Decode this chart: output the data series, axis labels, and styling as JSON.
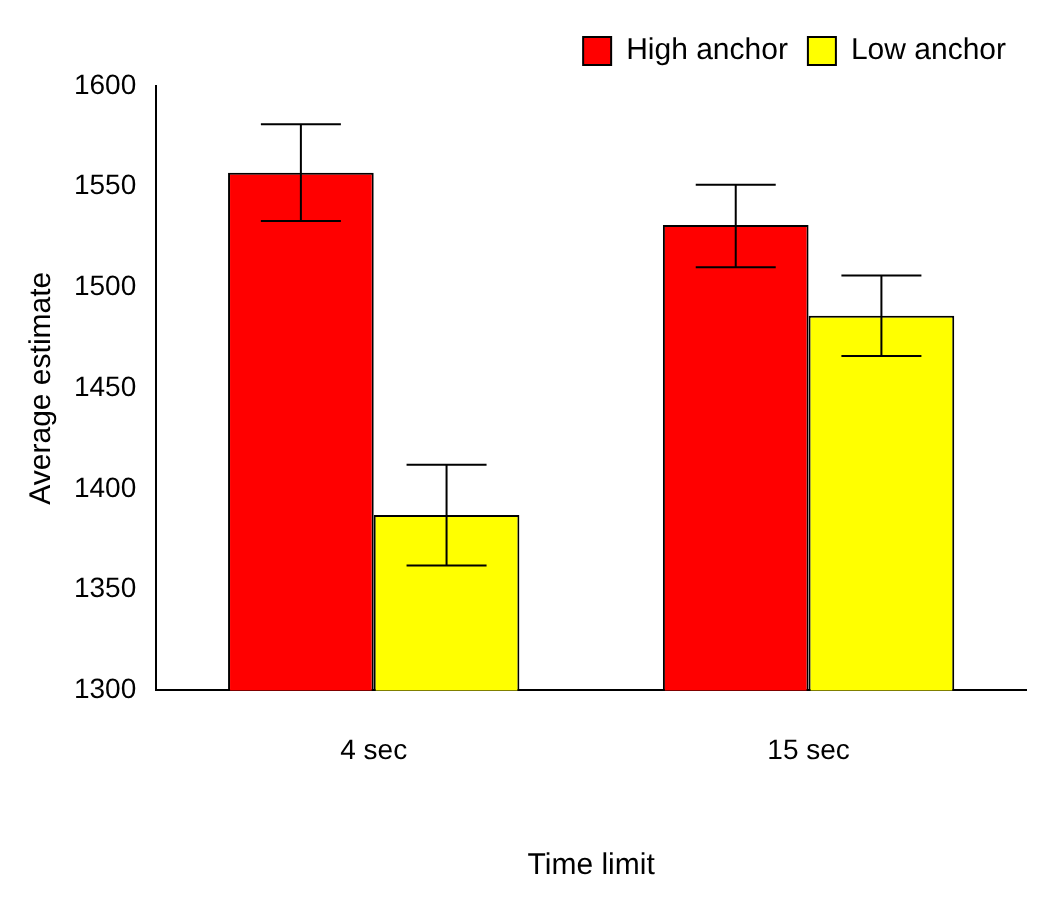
{
  "chart_data": {
    "type": "bar",
    "xlabel": "Time limit",
    "ylabel": "Average estimate",
    "categories": [
      "4 sec",
      "15 sec"
    ],
    "series": [
      {
        "name": "High anchor",
        "color": "#ff0000",
        "values": [
          1557,
          1531
        ],
        "errors": [
          [
            1533,
            1581
          ],
          [
            1510,
            1551
          ]
        ]
      },
      {
        "name": "Low anchor",
        "color": "#ffff00",
        "values": [
          1387,
          1486
        ],
        "errors": [
          [
            1362,
            1412
          ],
          [
            1466,
            1506
          ]
        ]
      }
    ],
    "ylim": [
      1300,
      1600
    ],
    "yticks": [
      1300,
      1350,
      1400,
      1450,
      1500,
      1550,
      1600
    ],
    "grid": false,
    "legend": "top right"
  }
}
